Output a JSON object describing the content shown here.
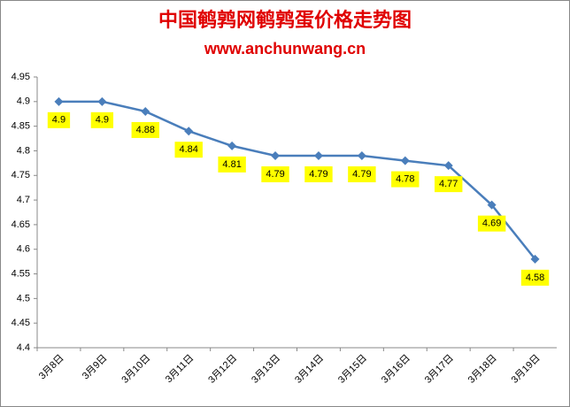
{
  "chart_data": {
    "type": "line",
    "title": "中国鹌鹑网鹌鹑蛋价格走势图",
    "subtitle": "www.anchunwang.cn",
    "categories": [
      "3月8日",
      "3月9日",
      "3月10日",
      "3月11日",
      "3月12日",
      "3月13日",
      "3月14日",
      "3月15日",
      "3月16日",
      "3月17日",
      "3月18日",
      "3月19日"
    ],
    "values": [
      4.9,
      4.9,
      4.88,
      4.84,
      4.81,
      4.79,
      4.79,
      4.79,
      4.78,
      4.77,
      4.69,
      4.58
    ],
    "color": "#4a7ebb",
    "label_color": "#ffff00",
    "ylim": [
      4.4,
      4.95
    ],
    "yticks": [
      4.4,
      4.45,
      4.5,
      4.55,
      4.6,
      4.65,
      4.7,
      4.75,
      4.8,
      4.85,
      4.9,
      4.95
    ],
    "grid": false
  }
}
